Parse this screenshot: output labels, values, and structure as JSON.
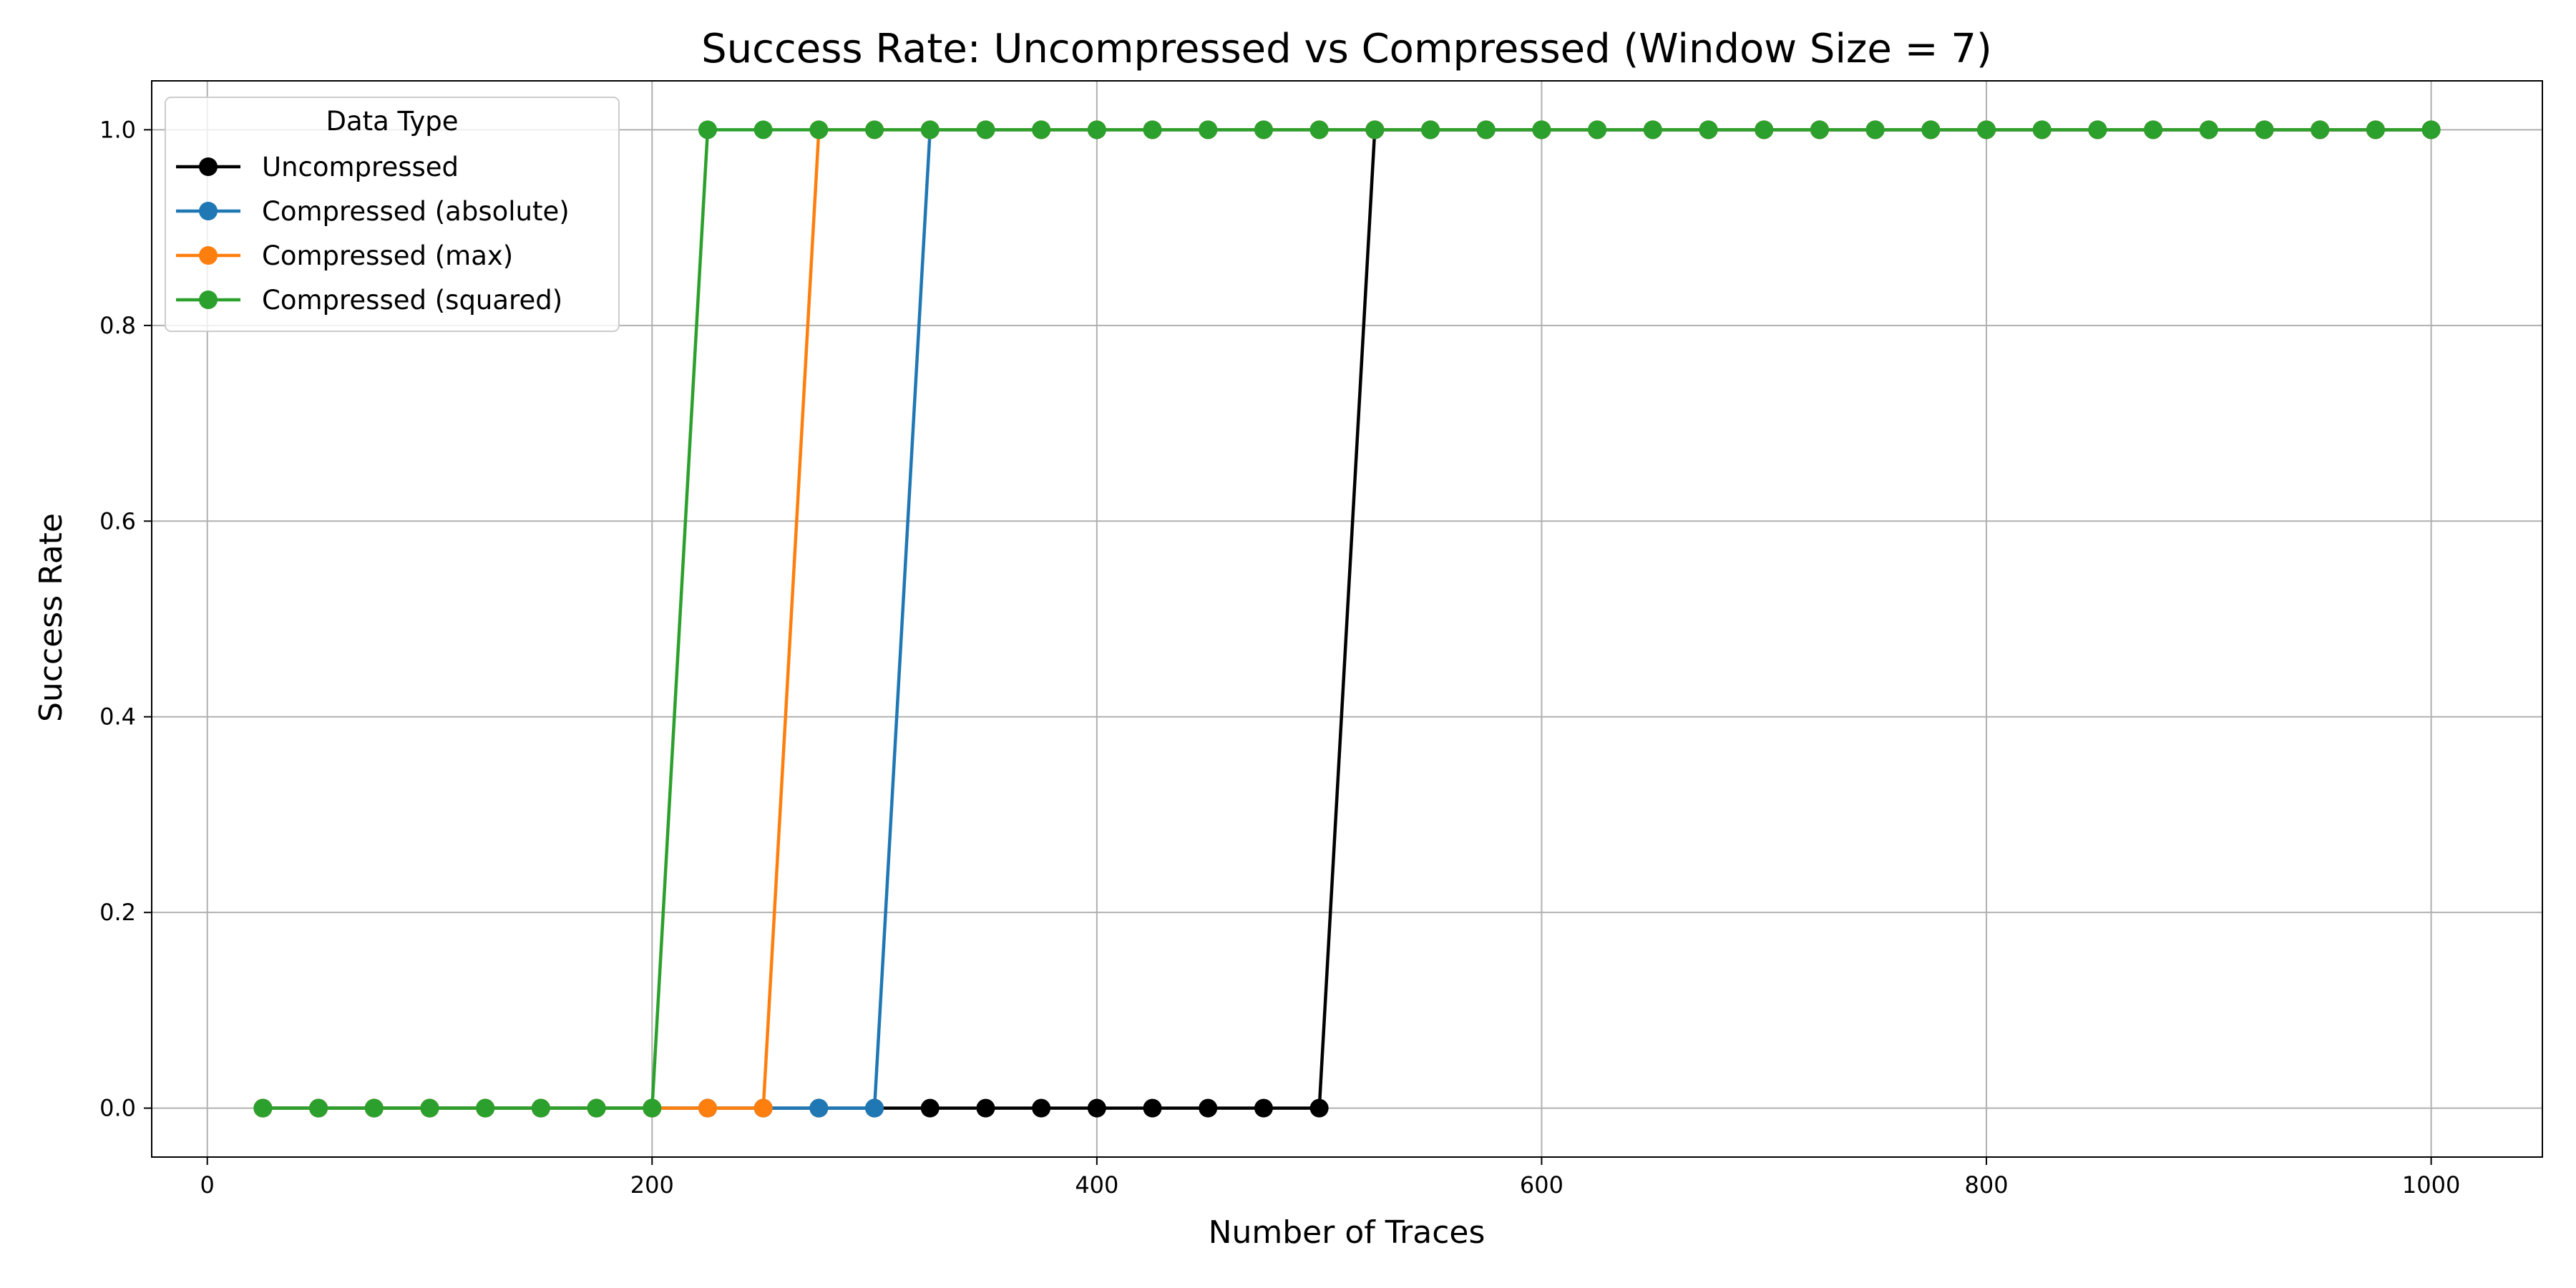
{
  "chart_data": {
    "type": "line",
    "title": "Success Rate: Uncompressed vs Compressed (Window Size = 7)",
    "xlabel": "Number of Traces",
    "ylabel": "Success Rate",
    "xlim": [
      -25,
      1050
    ],
    "ylim": [
      -0.05,
      1.05
    ],
    "xticks": [
      0,
      200,
      400,
      600,
      800,
      1000
    ],
    "xtick_labels": [
      "0",
      "200",
      "400",
      "600",
      "800",
      "1000"
    ],
    "yticks": [
      0.0,
      0.2,
      0.4,
      0.6,
      0.8,
      1.0
    ],
    "ytick_labels": [
      "0.0",
      "0.2",
      "0.4",
      "0.6",
      "0.8",
      "1.0"
    ],
    "grid": true,
    "legend": {
      "title": "Data Type",
      "placement": "top-left"
    },
    "x": [
      25,
      50,
      75,
      100,
      125,
      150,
      175,
      200,
      225,
      250,
      275,
      300,
      325,
      350,
      375,
      400,
      425,
      450,
      475,
      500,
      525,
      550,
      575,
      600,
      625,
      650,
      675,
      700,
      725,
      750,
      775,
      800,
      825,
      850,
      875,
      900,
      925,
      950,
      975,
      1000
    ],
    "series": [
      {
        "name": "Uncompressed",
        "color": "#000000",
        "values": [
          0,
          0,
          0,
          0,
          0,
          0,
          0,
          0,
          0,
          0,
          0,
          0,
          0,
          0,
          0,
          0,
          0,
          0,
          0,
          0,
          1,
          1,
          1,
          1,
          1,
          1,
          1,
          1,
          1,
          1,
          1,
          1,
          1,
          1,
          1,
          1,
          1,
          1,
          1,
          1
        ]
      },
      {
        "name": "Compressed (absolute)",
        "color": "#1f77b4",
        "values": [
          0,
          0,
          0,
          0,
          0,
          0,
          0,
          0,
          0,
          0,
          0,
          0,
          1,
          1,
          1,
          1,
          1,
          1,
          1,
          1,
          1,
          1,
          1,
          1,
          1,
          1,
          1,
          1,
          1,
          1,
          1,
          1,
          1,
          1,
          1,
          1,
          1,
          1,
          1,
          1
        ]
      },
      {
        "name": "Compressed (max)",
        "color": "#ff7f0e",
        "values": [
          0,
          0,
          0,
          0,
          0,
          0,
          0,
          0,
          0,
          0,
          1,
          1,
          1,
          1,
          1,
          1,
          1,
          1,
          1,
          1,
          1,
          1,
          1,
          1,
          1,
          1,
          1,
          1,
          1,
          1,
          1,
          1,
          1,
          1,
          1,
          1,
          1,
          1,
          1,
          1
        ]
      },
      {
        "name": "Compressed (squared)",
        "color": "#2ca02c",
        "values": [
          0,
          0,
          0,
          0,
          0,
          0,
          0,
          0,
          1,
          1,
          1,
          1,
          1,
          1,
          1,
          1,
          1,
          1,
          1,
          1,
          1,
          1,
          1,
          1,
          1,
          1,
          1,
          1,
          1,
          1,
          1,
          1,
          1,
          1,
          1,
          1,
          1,
          1,
          1,
          1
        ]
      }
    ]
  }
}
